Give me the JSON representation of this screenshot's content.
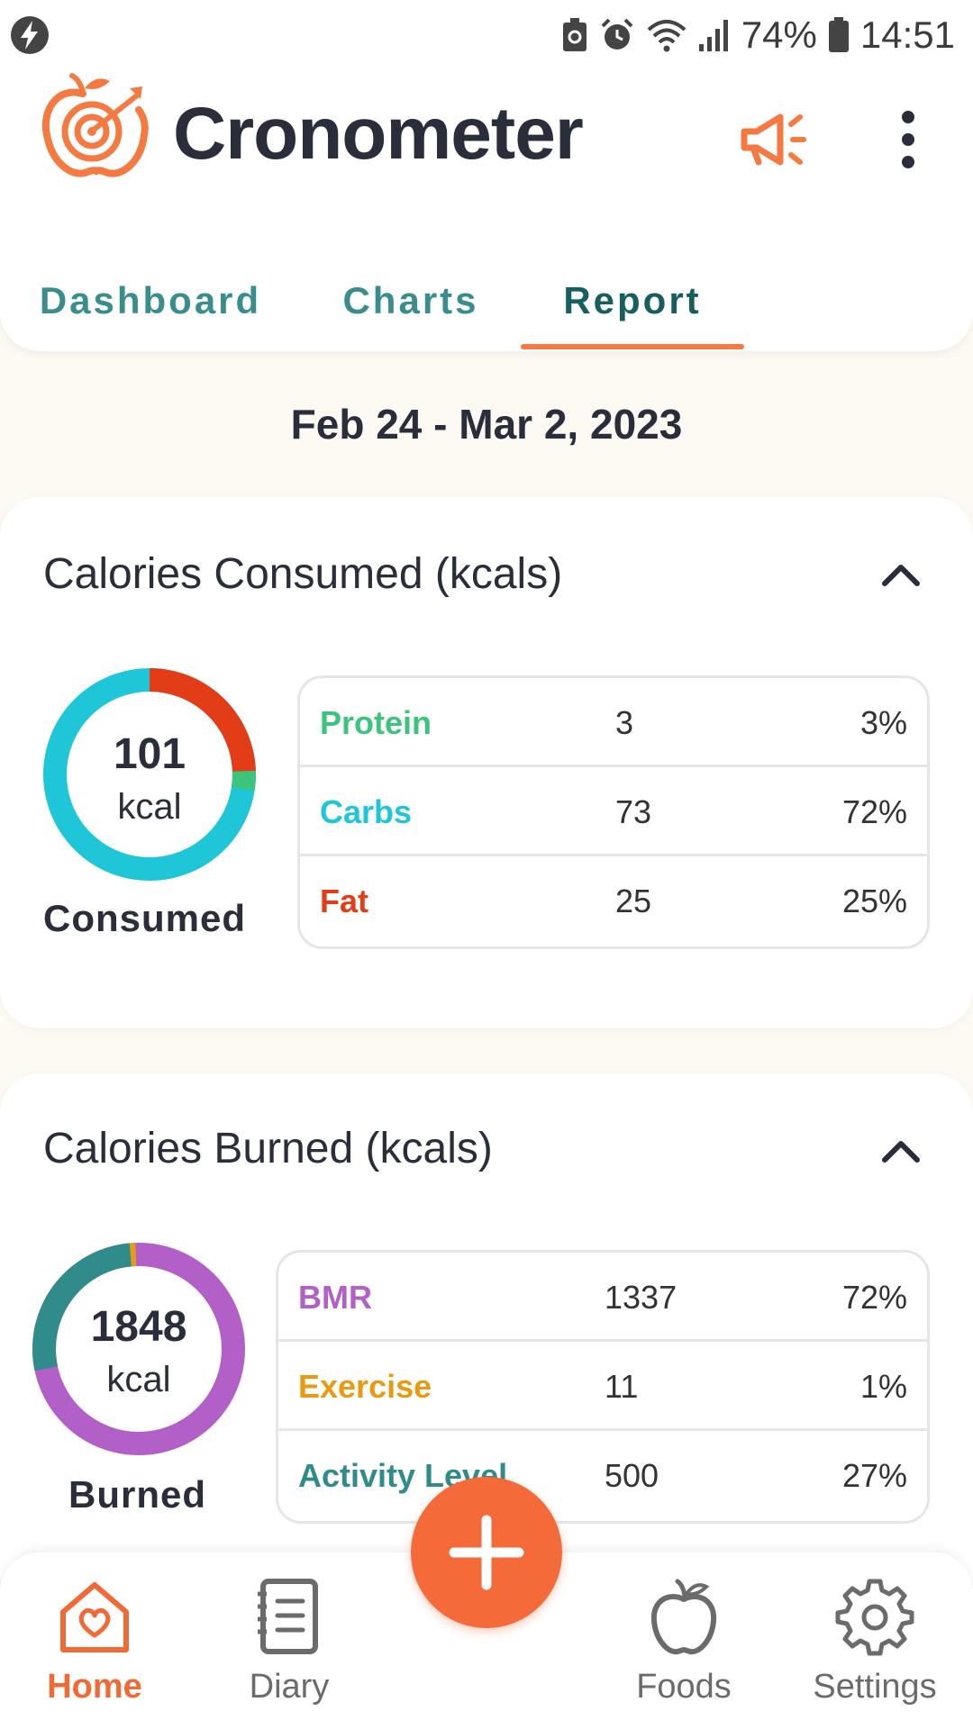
{
  "status_bar": {
    "battery": "74%",
    "time": "14:51"
  },
  "app": {
    "title": "Cronometer"
  },
  "tabs": [
    {
      "label": "Dashboard",
      "active": false
    },
    {
      "label": "Charts",
      "active": false
    },
    {
      "label": "Report",
      "active": true
    }
  ],
  "report": {
    "date_range": "Feb 24 - Mar 2, 2023"
  },
  "consumed": {
    "title": "Calories Consumed (kcals)",
    "total": "101",
    "unit": "kcal",
    "caption": "Consumed",
    "rows": [
      {
        "name": "Protein",
        "value": "3",
        "pct": "3%",
        "color": "#3cc47c"
      },
      {
        "name": "Carbs",
        "value": "73",
        "pct": "72%",
        "color": "#1ec6d8"
      },
      {
        "name": "Fat",
        "value": "25",
        "pct": "25%",
        "color": "#e23d16"
      }
    ]
  },
  "burned": {
    "title": "Calories Burned (kcals)",
    "total": "1848",
    "unit": "kcal",
    "caption": "Burned",
    "rows": [
      {
        "name": "BMR",
        "value": "1337",
        "pct": "72%",
        "color": "#b25fc7"
      },
      {
        "name": "Exercise",
        "value": "11",
        "pct": "1%",
        "color": "#e89a12"
      },
      {
        "name": "Activity Level",
        "value": "500",
        "pct": "27%",
        "color": "#2f8c8a"
      }
    ]
  },
  "bottom_nav": [
    {
      "label": "Home",
      "icon": "home-icon",
      "active": true
    },
    {
      "label": "Diary",
      "icon": "diary-icon",
      "active": false
    },
    {
      "label": "Foods",
      "icon": "apple-icon",
      "active": false
    },
    {
      "label": "Settings",
      "icon": "gear-icon",
      "active": false
    }
  ],
  "fab": {
    "icon": "plus-icon"
  },
  "colors": {
    "accent": "#f46a38",
    "teal": "#3a8d8d",
    "teal_dark": "#175f5f"
  }
}
